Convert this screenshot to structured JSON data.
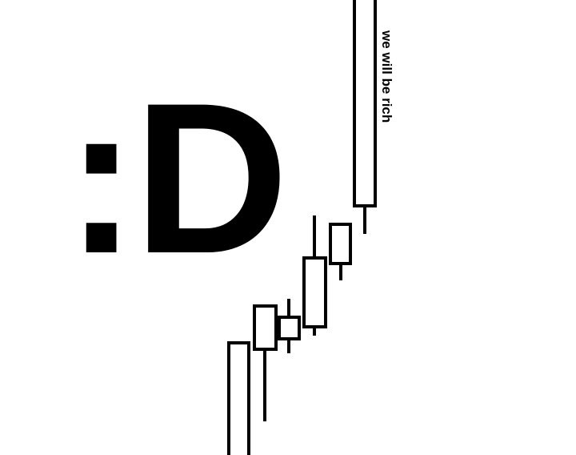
{
  "emoticon": ":D",
  "caption": "we will be rich",
  "colors": {
    "background": "#ffffff",
    "ink": "#000000"
  }
}
